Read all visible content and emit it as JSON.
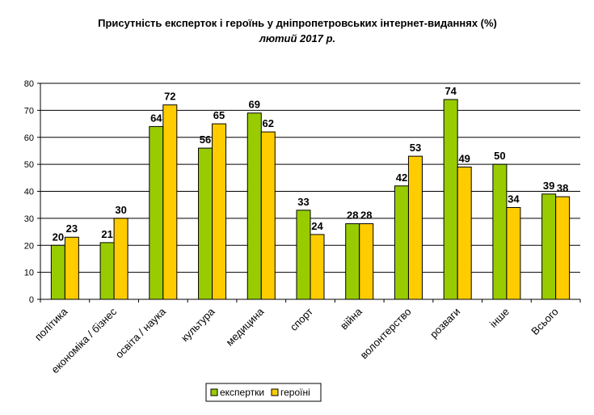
{
  "chart_data": {
    "type": "bar",
    "title": "Присутність експерток і героїнь у дніпропетровських інтернет-виданнях (%)",
    "subtitle": "лютий 2017 р.",
    "categories": [
      "політика",
      "економіка / бізнес",
      "освіта / наука",
      "культура",
      "медицина",
      "спорт",
      "війна",
      "волонтерство",
      "розваги",
      "інше",
      "Всього"
    ],
    "series": [
      {
        "name": "експертки",
        "color": "#99cc00",
        "values": [
          20,
          21,
          64,
          56,
          69,
          33,
          28,
          42,
          74,
          50,
          39
        ]
      },
      {
        "name": "героїні",
        "color": "#ffcc00",
        "values": [
          23,
          30,
          72,
          65,
          62,
          24,
          28,
          53,
          49,
          34,
          38
        ]
      }
    ],
    "ylim": [
      0,
      80
    ],
    "yticks": [
      0,
      10,
      20,
      30,
      40,
      50,
      60,
      70,
      80
    ],
    "grid": true,
    "legend_position": "bottom",
    "xlabel": "",
    "ylabel": ""
  }
}
